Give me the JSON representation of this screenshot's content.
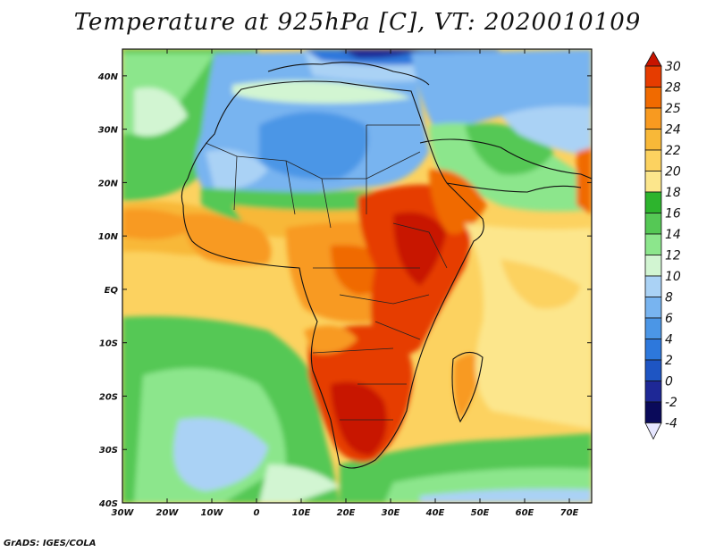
{
  "title": "Temperature at 925hPa [C], VT: 2020010109",
  "footer": "GrADS: IGES/COLA",
  "chart_data": {
    "type": "heatmap",
    "variable": "Temperature at 925hPa",
    "units": "C",
    "valid_time": "2020010109",
    "x_ticks": [
      "30W",
      "20W",
      "10W",
      "0",
      "10E",
      "20E",
      "30E",
      "40E",
      "50E",
      "60E",
      "70E"
    ],
    "y_ticks": [
      "40N",
      "30N",
      "20N",
      "10N",
      "EQ",
      "10S",
      "20S",
      "30S",
      "40S"
    ],
    "lon_range": [
      -30,
      75
    ],
    "lat_range": [
      -40,
      45
    ],
    "colorbar": {
      "labels": [
        "30",
        "28",
        "25",
        "24",
        "22",
        "20",
        "18",
        "16",
        "14",
        "12",
        "10",
        "8",
        "6",
        "4",
        "2",
        "0",
        "-2",
        "-4"
      ],
      "colors": [
        "#c81400",
        "#e63c00",
        "#f06a00",
        "#f89a20",
        "#f8b838",
        "#fcd260",
        "#fce68c",
        "#2db42d",
        "#55c855",
        "#8ce68c",
        "#d2f5d2",
        "#aad2f5",
        "#78b4f0",
        "#4b96e6",
        "#2d78dc",
        "#1e55c3",
        "#1e2896",
        "#0a0a5a",
        "#e6e6ff"
      ]
    }
  }
}
